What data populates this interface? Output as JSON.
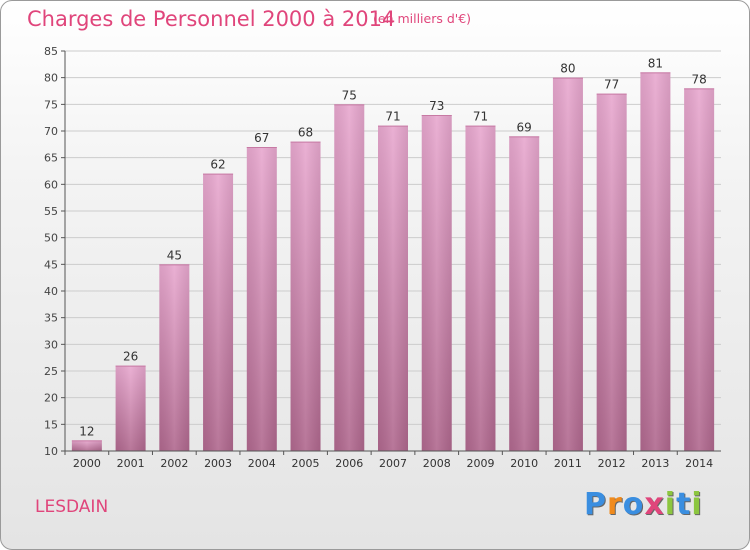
{
  "title": "Charges de Personnel 2000 à 2014",
  "subtitle": "(en milliers d'€)",
  "commune": "LESDAIN",
  "logo": {
    "text": "Proxiti",
    "letters": [
      "P",
      "r",
      "o",
      "x",
      "i",
      "t",
      "i"
    ],
    "colors": [
      "#3a8ee0",
      "#f08a1c",
      "#3a8ee0",
      "#e0457b",
      "#8cc63f",
      "#3a8ee0",
      "#8cc63f"
    ]
  },
  "colors": {
    "accent": "#e0457b",
    "bar_top": "#e8a8cf",
    "bar_bottom": "#b0688e",
    "grid": "#cccccc",
    "axis": "#555555"
  },
  "chart_data": {
    "type": "bar",
    "title": "Charges de Personnel 2000 à 2014",
    "subtitle": "(en milliers d'€)",
    "xlabel": "",
    "ylabel": "",
    "categories": [
      "2000",
      "2001",
      "2002",
      "2003",
      "2004",
      "2005",
      "2006",
      "2007",
      "2008",
      "2009",
      "2010",
      "2011",
      "2012",
      "2013",
      "2014"
    ],
    "values": [
      12,
      26,
      45,
      62,
      67,
      68,
      75,
      71,
      73,
      71,
      69,
      80,
      77,
      81,
      78
    ],
    "ylim": [
      10,
      85
    ],
    "yticks": [
      10,
      15,
      20,
      25,
      30,
      35,
      40,
      45,
      50,
      55,
      60,
      65,
      70,
      75,
      80,
      85
    ],
    "grid": true,
    "data_labels": true
  }
}
